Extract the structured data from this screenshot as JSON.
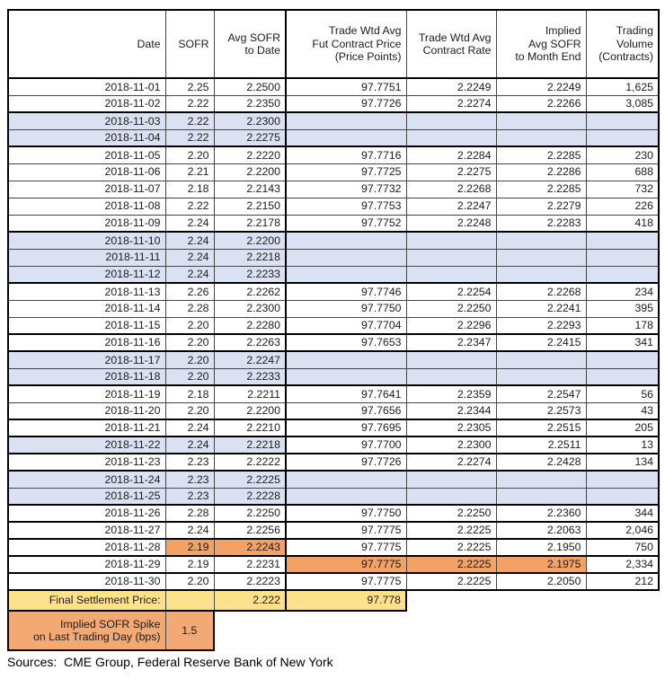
{
  "colors": {
    "weekend_fill": "#D9E1F2",
    "highlight_orange": "#F2A265",
    "settlement_fill": "#FFE18A",
    "spike_fill": "#F3A974"
  },
  "table": {
    "headers": [
      "Date",
      "SOFR",
      "Avg SOFR\nto Date",
      "Trade Wtd Avg\nFut Contract Price\n(Price Points)",
      "Trade Wtd Avg\nContract Rate",
      "Implied\nAvg SOFR\nto Month End",
      "Trading\nVolume\n(Contracts)"
    ],
    "rows": [
      {
        "date": "2018-11-01",
        "sofr": "2.25",
        "avg": "2.2500",
        "price": "97.7751",
        "rate": "2.2249",
        "implied": "2.2249",
        "vol": "1,625",
        "fill": "white",
        "thick": false,
        "hl": []
      },
      {
        "date": "2018-11-02",
        "sofr": "2.22",
        "avg": "2.2350",
        "price": "97.7726",
        "rate": "2.2274",
        "implied": "2.2266",
        "vol": "3,085",
        "fill": "white",
        "thick": false,
        "hl": []
      },
      {
        "date": "2018-11-03",
        "sofr": "2.22",
        "avg": "2.2300",
        "price": "",
        "rate": "",
        "implied": "",
        "vol": "",
        "fill": "blue",
        "thick": true,
        "hl": []
      },
      {
        "date": "2018-11-04",
        "sofr": "2.22",
        "avg": "2.2275",
        "price": "",
        "rate": "",
        "implied": "",
        "vol": "",
        "fill": "blue",
        "thick": false,
        "hl": []
      },
      {
        "date": "2018-11-05",
        "sofr": "2.20",
        "avg": "2.2220",
        "price": "97.7716",
        "rate": "2.2284",
        "implied": "2.2285",
        "vol": "230",
        "fill": "white",
        "thick": true,
        "hl": []
      },
      {
        "date": "2018-11-06",
        "sofr": "2.21",
        "avg": "2.2200",
        "price": "97.7725",
        "rate": "2.2275",
        "implied": "2.2286",
        "vol": "688",
        "fill": "white",
        "thick": false,
        "hl": []
      },
      {
        "date": "2018-11-07",
        "sofr": "2.18",
        "avg": "2.2143",
        "price": "97.7732",
        "rate": "2.2268",
        "implied": "2.2285",
        "vol": "732",
        "fill": "white",
        "thick": false,
        "hl": []
      },
      {
        "date": "2018-11-08",
        "sofr": "2.22",
        "avg": "2.2150",
        "price": "97.7753",
        "rate": "2.2247",
        "implied": "2.2279",
        "vol": "226",
        "fill": "white",
        "thick": false,
        "hl": []
      },
      {
        "date": "2018-11-09",
        "sofr": "2.24",
        "avg": "2.2178",
        "price": "97.7752",
        "rate": "2.2248",
        "implied": "2.2283",
        "vol": "418",
        "fill": "white",
        "thick": false,
        "hl": []
      },
      {
        "date": "2018-11-10",
        "sofr": "2.24",
        "avg": "2.2200",
        "price": "",
        "rate": "",
        "implied": "",
        "vol": "",
        "fill": "blue",
        "thick": true,
        "hl": []
      },
      {
        "date": "2018-11-11",
        "sofr": "2.24",
        "avg": "2.2218",
        "price": "",
        "rate": "",
        "implied": "",
        "vol": "",
        "fill": "blue",
        "thick": false,
        "hl": []
      },
      {
        "date": "2018-11-12",
        "sofr": "2.24",
        "avg": "2.2233",
        "price": "",
        "rate": "",
        "implied": "",
        "vol": "",
        "fill": "blue",
        "thick": false,
        "hl": []
      },
      {
        "date": "2018-11-13",
        "sofr": "2.26",
        "avg": "2.2262",
        "price": "97.7746",
        "rate": "2.2254",
        "implied": "2.2268",
        "vol": "234",
        "fill": "white",
        "thick": true,
        "hl": []
      },
      {
        "date": "2018-11-14",
        "sofr": "2.28",
        "avg": "2.2300",
        "price": "97.7750",
        "rate": "2.2250",
        "implied": "2.2241",
        "vol": "395",
        "fill": "white",
        "thick": false,
        "hl": []
      },
      {
        "date": "2018-11-15",
        "sofr": "2.20",
        "avg": "2.2280",
        "price": "97.7704",
        "rate": "2.2296",
        "implied": "2.2293",
        "vol": "178",
        "fill": "white",
        "thick": false,
        "hl": []
      },
      {
        "date": "2018-11-16",
        "sofr": "2.20",
        "avg": "2.2263",
        "price": "97.7653",
        "rate": "2.2347",
        "implied": "2.2415",
        "vol": "341",
        "fill": "white",
        "thick": true,
        "hl": []
      },
      {
        "date": "2018-11-17",
        "sofr": "2.20",
        "avg": "2.2247",
        "price": "",
        "rate": "",
        "implied": "",
        "vol": "",
        "fill": "blue",
        "thick": true,
        "hl": []
      },
      {
        "date": "2018-11-18",
        "sofr": "2.20",
        "avg": "2.2233",
        "price": "",
        "rate": "",
        "implied": "",
        "vol": "",
        "fill": "blue",
        "thick": false,
        "hl": []
      },
      {
        "date": "2018-11-19",
        "sofr": "2.18",
        "avg": "2.2211",
        "price": "97.7641",
        "rate": "2.2359",
        "implied": "2.2547",
        "vol": "56",
        "fill": "white",
        "thick": true,
        "hl": []
      },
      {
        "date": "2018-11-20",
        "sofr": "2.20",
        "avg": "2.2200",
        "price": "97.7656",
        "rate": "2.2344",
        "implied": "2.2573",
        "vol": "43",
        "fill": "white",
        "thick": false,
        "hl": []
      },
      {
        "date": "2018-11-21",
        "sofr": "2.24",
        "avg": "2.2210",
        "price": "97.7695",
        "rate": "2.2305",
        "implied": "2.2515",
        "vol": "205",
        "fill": "white",
        "thick": true,
        "hl": []
      },
      {
        "date": "2018-11-22",
        "sofr": "2.24",
        "avg": "2.2218",
        "price": "97.7700",
        "rate": "2.2300",
        "implied": "2.2511",
        "vol": "13",
        "fill": "blue3",
        "thick": true,
        "hl": []
      },
      {
        "date": "2018-11-23",
        "sofr": "2.23",
        "avg": "2.2222",
        "price": "97.7726",
        "rate": "2.2274",
        "implied": "2.2428",
        "vol": "134",
        "fill": "white",
        "thick": true,
        "hl": []
      },
      {
        "date": "2018-11-24",
        "sofr": "2.23",
        "avg": "2.2225",
        "price": "",
        "rate": "",
        "implied": "",
        "vol": "",
        "fill": "blue",
        "thick": true,
        "hl": []
      },
      {
        "date": "2018-11-25",
        "sofr": "2.23",
        "avg": "2.2228",
        "price": "",
        "rate": "",
        "implied": "",
        "vol": "",
        "fill": "blue",
        "thick": false,
        "hl": []
      },
      {
        "date": "2018-11-26",
        "sofr": "2.28",
        "avg": "2.2250",
        "price": "97.7750",
        "rate": "2.2250",
        "implied": "2.2360",
        "vol": "344",
        "fill": "white",
        "thick": true,
        "hl": []
      },
      {
        "date": "2018-11-27",
        "sofr": "2.24",
        "avg": "2.2256",
        "price": "97.7775",
        "rate": "2.2225",
        "implied": "2.2063",
        "vol": "2,046",
        "fill": "white",
        "thick": true,
        "hl": []
      },
      {
        "date": "2018-11-28",
        "sofr": "2.19",
        "avg": "2.2243",
        "price": "97.7775",
        "rate": "2.2225",
        "implied": "2.1950",
        "vol": "750",
        "fill": "white",
        "thick": true,
        "hl": [
          "sofr",
          "avg"
        ]
      },
      {
        "date": "2018-11-29",
        "sofr": "2.19",
        "avg": "2.2231",
        "price": "97.7775",
        "rate": "2.2225",
        "implied": "2.1975",
        "vol": "2,334",
        "fill": "white",
        "thick": true,
        "hl": [
          "price",
          "rate",
          "implied"
        ]
      },
      {
        "date": "2018-11-30",
        "sofr": "2.20",
        "avg": "2.2223",
        "price": "97.7775",
        "rate": "2.2225",
        "implied": "2.2050",
        "vol": "212",
        "fill": "white",
        "thick": true,
        "hl": []
      }
    ],
    "summary": {
      "final_settlement": {
        "label": "Final Settlement Price:",
        "sofr": "",
        "avg": "2.222",
        "price": "97.778"
      },
      "implied_spike": {
        "label": "Implied SOFR Spike\non Last Trading Day (bps)",
        "value": "1.5"
      }
    }
  },
  "footer": {
    "sources": "Sources:  CME Group, Federal Reserve Bank of New York"
  }
}
